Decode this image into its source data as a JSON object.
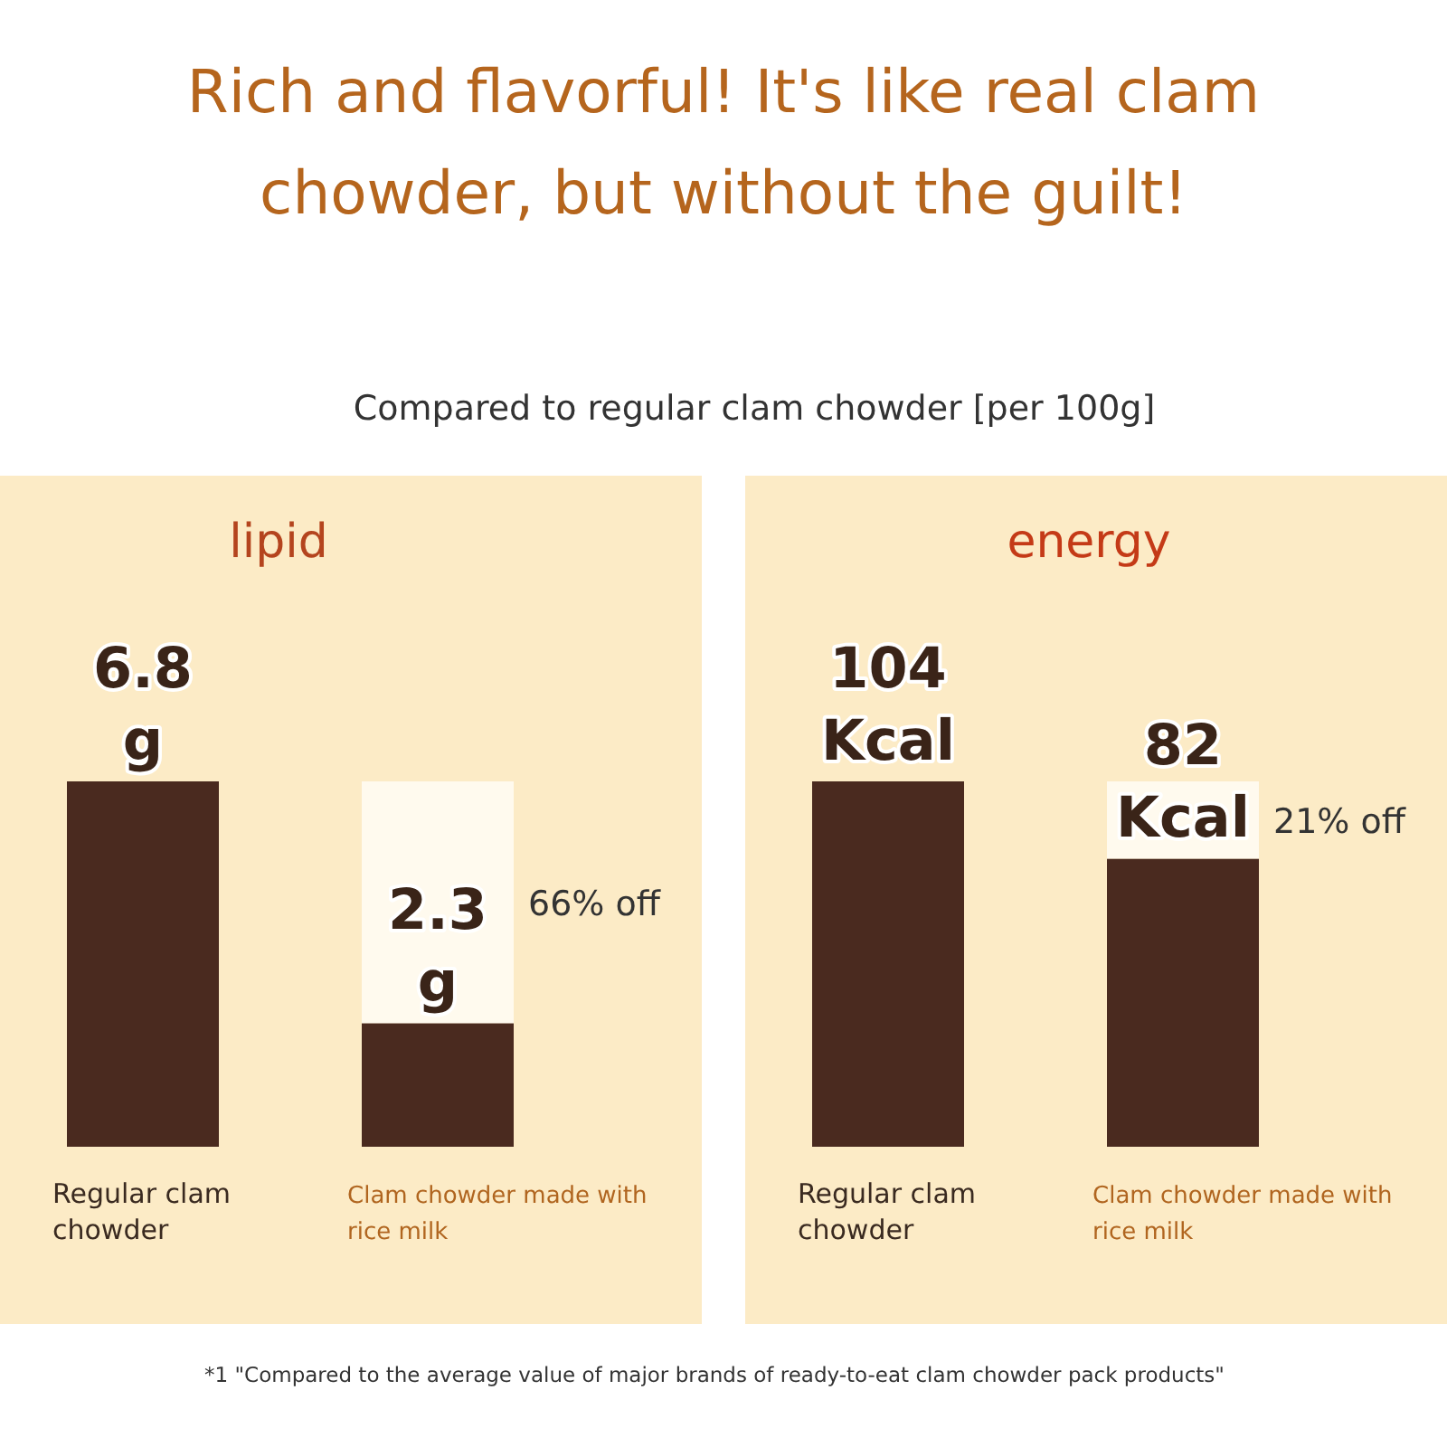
{
  "chart_data": [
    {
      "type": "bar",
      "title": "lipid",
      "stacked": true,
      "categories": [
        "Regular clam chowder",
        "Clam chowder made with rice milk"
      ],
      "series": [
        {
          "color": "#4a2a1f",
          "values": [
            6.8,
            2.3
          ],
          "value_labels": [
            "6.8 g",
            "2.3 g"
          ]
        },
        {
          "color": "#fffaee",
          "values": [
            0,
            4.5
          ]
        }
      ],
      "annotations": [
        "Rich and flavorful! It's like real clam chowder, but without the guilt!",
        "Compared to regular clam chowder [per 100g]",
        "66% off"
      ]
    },
    {
      "type": "bar",
      "title": "energy",
      "stacked": true,
      "categories": [
        "Regular clam chowder",
        "Clam chowder made with rice milk"
      ],
      "series": [
        {
          "color": "#4a2a1f",
          "values": [
            104,
            82
          ],
          "value_labels": [
            "104 Kcal",
            "82 Kcal"
          ]
        },
        {
          "color": "#fffaee",
          "values": [
            0,
            22
          ]
        }
      ],
      "annotations": [
        "21% off",
        "*1 \"Compared to the average value of major brands of ready-to-eat clam chowder pack products\""
      ]
    }
  ]
}
